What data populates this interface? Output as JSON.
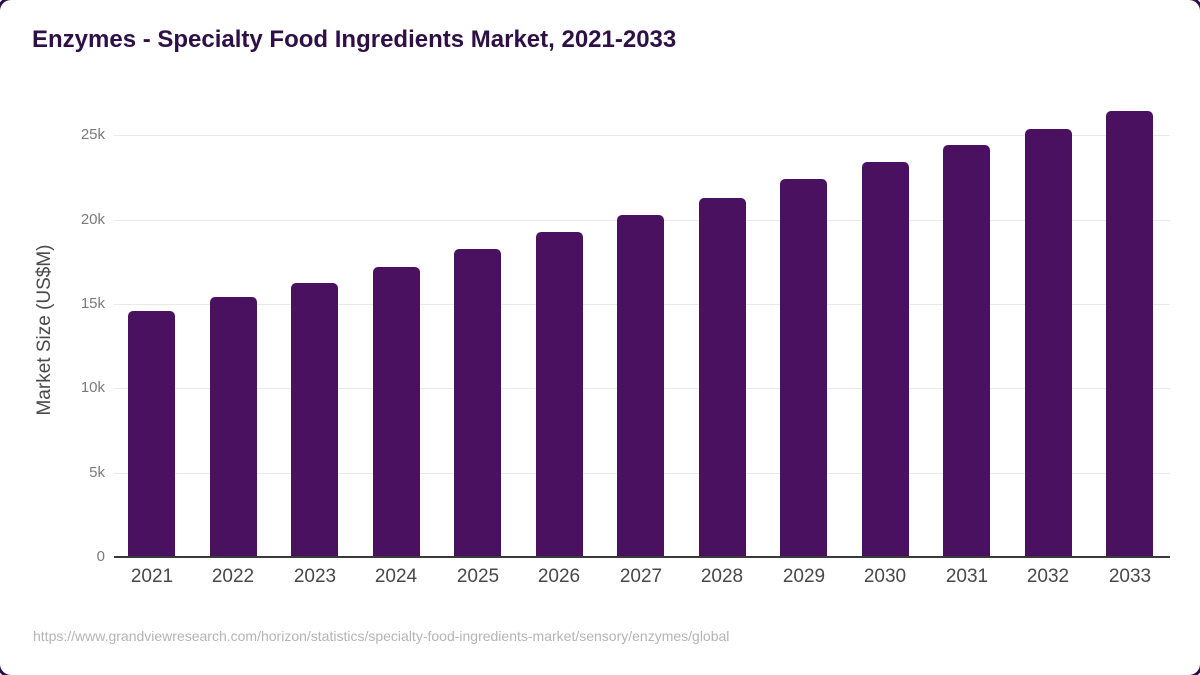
{
  "header": {
    "title": "Enzymes - Specialty Food Ingredients Market, 2021-2033"
  },
  "footer": {
    "source_url": "https://www.grandviewresearch.com/horizon/statistics/specialty-food-ingredients-market/sensory/enzymes/global"
  },
  "colors": {
    "bar": "#4a1161",
    "title": "#2e1047",
    "axis_line": "#3a3a3a",
    "gridline": "#e9e9e9",
    "tick_label": "#7a7a7a",
    "year_label": "#484848",
    "axis_title": "#4a4a4a",
    "footer_text": "#b4b4b4",
    "frame": "#2b0f45"
  },
  "chart_data": {
    "type": "bar",
    "title": "Enzymes - Specialty Food Ingredients Market, 2021-2033",
    "xlabel": "",
    "ylabel": "Market Size (US$M)",
    "units": "US$M",
    "categories": [
      "2021",
      "2022",
      "2023",
      "2024",
      "2025",
      "2026",
      "2027",
      "2028",
      "2029",
      "2030",
      "2031",
      "2032",
      "2033"
    ],
    "values": [
      14600,
      15400,
      16250,
      17200,
      18250,
      19250,
      20250,
      21300,
      22400,
      23400,
      24450,
      25400,
      26450
    ],
    "ytick_values": [
      0,
      5000,
      10000,
      15000,
      20000,
      25000
    ],
    "ytick_labels": [
      "0",
      "5k",
      "10k",
      "15k",
      "20k",
      "25k"
    ],
    "ylim": [
      0,
      26900
    ],
    "grid": true,
    "legend": false,
    "bar_color": "#4a1161"
  }
}
